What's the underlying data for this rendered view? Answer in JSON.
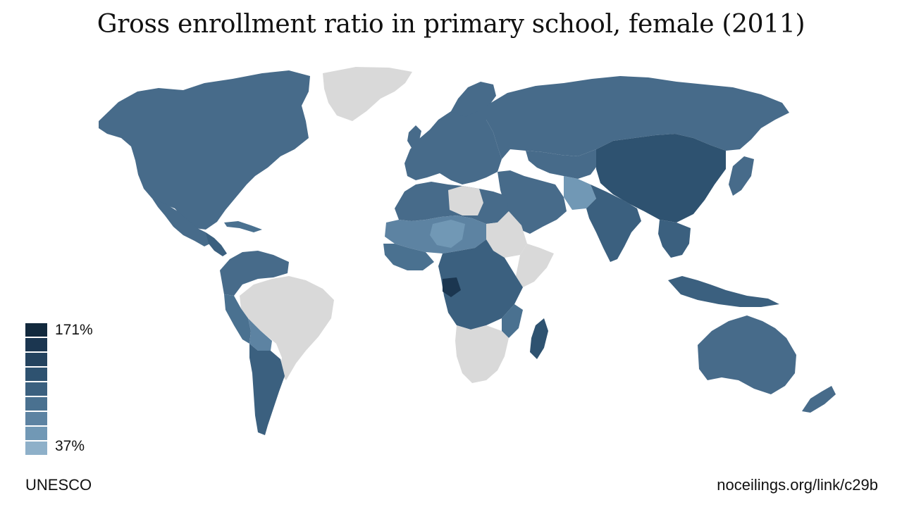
{
  "title": "Gross enrollment ratio in primary school, female (2011)",
  "legend": {
    "max_label": "171%",
    "min_label": "37%",
    "colors": [
      "#12293d",
      "#1b3650",
      "#24435f",
      "#2e5270",
      "#3b607f",
      "#4a7190",
      "#5d83a2",
      "#7198b5",
      "#8eb0c9"
    ]
  },
  "source": "UNESCO",
  "link": "noceilings.org/link/c29b",
  "colors": {
    "no_data": "#d9d9d9",
    "dominant": "#476b8a"
  }
}
